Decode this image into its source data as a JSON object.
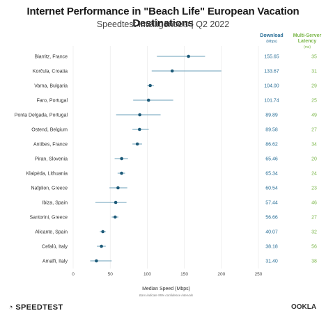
{
  "header": {
    "title": "Internet Performance in \"Beach Life\" European Vacation Destinations",
    "subtitle": "Speedtest Intelligence® | Q2 2022"
  },
  "columns": {
    "download": "Download",
    "download_unit": "(Mbps)",
    "latency": "Multi-Server Latency",
    "latency_unit": "(ms)"
  },
  "footer": {
    "brand": "SPEEDTEST",
    "company": "OOKLA"
  },
  "colors": {
    "marker": "#1d5a78",
    "errorbar": "#6a9fb8",
    "download_text": "#2a6f97",
    "latency_text": "#7ab648",
    "grid": "#e6e6e6"
  },
  "chart_data": {
    "type": "scatter",
    "title": "Internet Performance in \"Beach Life\" European Vacation Destinations",
    "subtitle": "Speedtest Intelligence® | Q2 2022",
    "xlabel": "Median Speed (Mbps)",
    "xnote": "Bars indicate 95% confidence intervals",
    "xlim": [
      0,
      250
    ],
    "xticks": [
      0,
      50,
      100,
      150,
      200,
      250
    ],
    "grid": true,
    "categories": [
      "Biarritz, France",
      "Korčula, Croatia",
      "Varna, Bulgaria",
      "Faro, Portugal",
      "Ponta Delgada, Portugal",
      "Ostend, Belgium",
      "Antibes, France",
      "Piran, Slovenia",
      "Klaipėda, Lithuania",
      "Nafplion, Greece",
      "Ibiza, Spain",
      "Santorini, Greece",
      "Alicante, Spain",
      "Cefalù, Italy",
      "Amalfi, Italy"
    ],
    "series": [
      {
        "name": "Download",
        "values": [
          155.65,
          133.67,
          104.0,
          101.74,
          89.89,
          89.58,
          86.62,
          65.46,
          65.34,
          60.54,
          57.44,
          56.66,
          40.07,
          38.18,
          31.4
        ],
        "labels": [
          "155.65",
          "133.67",
          "104.00",
          "101.74",
          "89.89",
          "89.58",
          "86.62",
          "65.46",
          "65.34",
          "60.54",
          "57.44",
          "56.66",
          "40.07",
          "38.18",
          "31.40"
        ],
        "ci_low": [
          113,
          106,
          100,
          81,
          58,
          80,
          80,
          56,
          60,
          49,
          30,
          52,
          36,
          32,
          23
        ],
        "ci_high": [
          178,
          200,
          109,
          135,
          118,
          102,
          93,
          74,
          70,
          73,
          72,
          61,
          44,
          44,
          52
        ]
      },
      {
        "name": "Multi-Server Latency",
        "values": [
          35,
          31,
          29,
          25,
          49,
          27,
          34,
          20,
          24,
          23,
          46,
          27,
          32,
          56,
          38
        ]
      }
    ]
  }
}
